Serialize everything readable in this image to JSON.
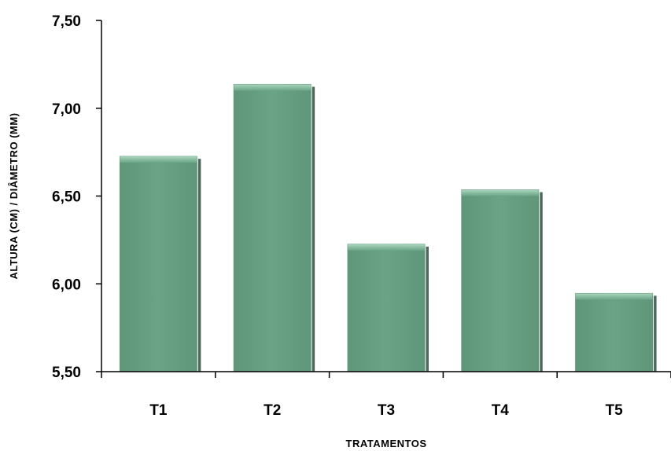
{
  "chart_data": {
    "type": "bar",
    "title": "",
    "xlabel": "TRATAMENTOS",
    "ylabel": "ALTURA (CM) / DIÂMETRO (MM)",
    "categories": [
      "T1",
      "T2",
      "T3",
      "T4",
      "T5"
    ],
    "values": [
      6.73,
      7.14,
      6.23,
      6.54,
      5.95
    ],
    "ylim": [
      5.5,
      7.5
    ],
    "yticks": [
      "5,50",
      "6,00",
      "6,50",
      "7,00",
      "7,50"
    ],
    "ytick_values": [
      5.5,
      6.0,
      6.5,
      7.0,
      7.5
    ],
    "grid": false,
    "legend": "none",
    "colors": {
      "bar_fill": "#6aa386",
      "bar_top": "#8ec1a6",
      "bar_edge": "#2f4f3e",
      "axis": "#000000"
    }
  }
}
